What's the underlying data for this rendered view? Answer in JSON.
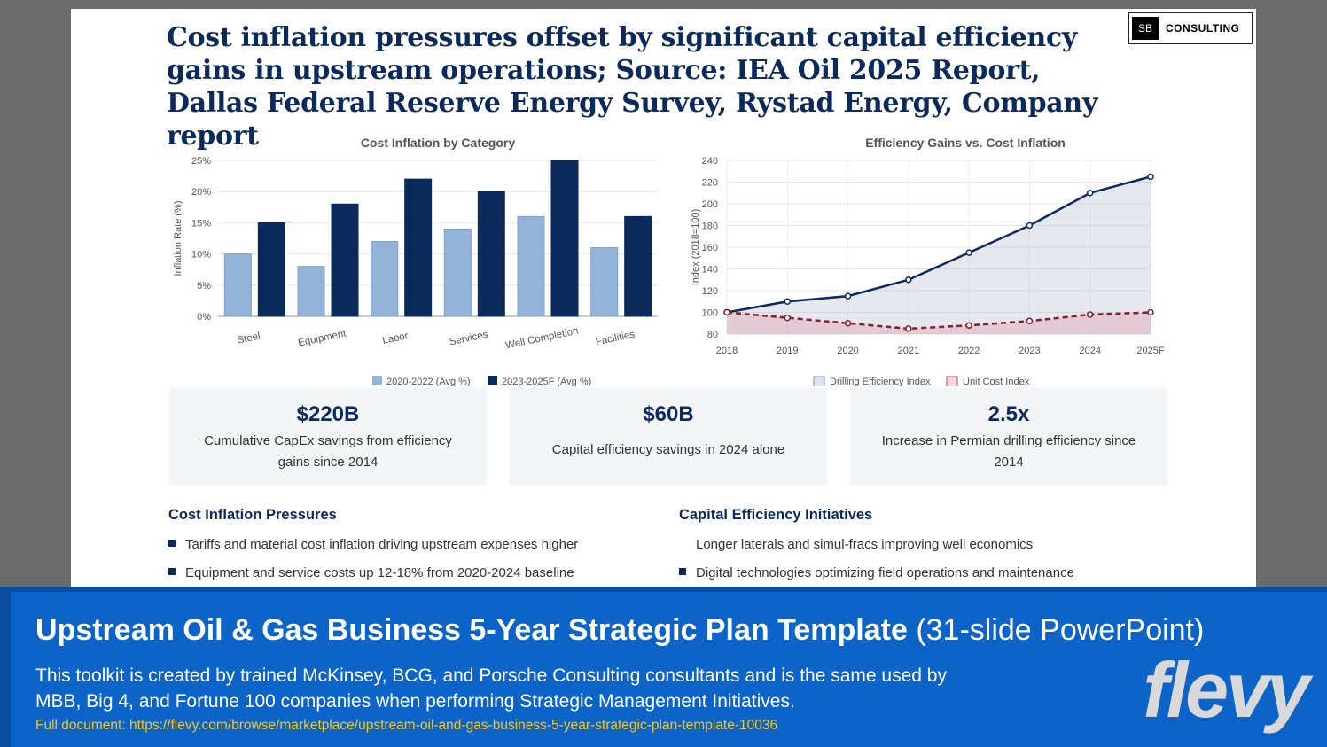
{
  "slide": {
    "title": "Cost inflation pressures offset by significant capital efficiency gains in upstream operations; Source: IEA Oil 2025 Report, Dallas Federal Reserve Energy Survey, Rystad Energy, Company report",
    "logo": {
      "box": "SB",
      "text": "CONSULTING"
    }
  },
  "chart_data": [
    {
      "type": "bar",
      "title": "Cost Inflation by Category",
      "ylabel": "Inflation Rate (%)",
      "xlabel": "",
      "categories": [
        "Steel",
        "Equipment",
        "Labor",
        "Services",
        "Well Completion",
        "Facilities"
      ],
      "series": [
        {
          "name": "2020-2022 (Avg %)",
          "values": [
            10,
            8,
            12,
            14,
            16,
            11
          ],
          "color": "#93b3d8"
        },
        {
          "name": "2023-2025F (Avg %)",
          "values": [
            15,
            18,
            22,
            20,
            25,
            16
          ],
          "color": "#0b2a5c"
        }
      ],
      "ylim": [
        0,
        25
      ],
      "yticks": [
        "0%",
        "5%",
        "10%",
        "15%",
        "20%",
        "25%"
      ],
      "legend": "bottom"
    },
    {
      "type": "line",
      "title": "Efficiency Gains vs. Cost Inflation",
      "ylabel": "Index (2018=100)",
      "xlabel": "",
      "x": [
        "2018",
        "2019",
        "2020",
        "2021",
        "2022",
        "2023",
        "2024",
        "2025F"
      ],
      "series": [
        {
          "name": "Drilling Efficiency Index",
          "values": [
            100,
            110,
            115,
            130,
            155,
            180,
            210,
            225
          ],
          "color": "#0b2a5c"
        },
        {
          "name": "Unit Cost Index",
          "values": [
            100,
            95,
            90,
            85,
            88,
            92,
            98,
            100
          ],
          "color": "#8b1a2b"
        }
      ],
      "ylim": [
        80,
        240
      ],
      "yticks": [
        "80",
        "100",
        "120",
        "140",
        "160",
        "180",
        "200",
        "220",
        "240"
      ],
      "legend": "bottom"
    }
  ],
  "stats": [
    {
      "value": "$220B",
      "desc": "Cumulative CapEx savings from efficiency gains since 2014"
    },
    {
      "value": "$60B",
      "desc": "Capital efficiency savings in 2024 alone"
    },
    {
      "value": "2.5x",
      "desc": "Increase in Permian drilling efficiency since 2014"
    }
  ],
  "sections": {
    "left": {
      "heading": "Cost Inflation Pressures",
      "bullets": [
        "Tariffs and material cost inflation driving upstream expenses higher",
        "Equipment and service costs up 12-18% from 2020-2024 baseline"
      ]
    },
    "right": {
      "heading": "Capital Efficiency Initiatives",
      "bullets": [
        "Longer laterals and simul-fracs improving well economics",
        "Digital technologies optimizing field operations and maintenance"
      ]
    }
  },
  "banner": {
    "title": "Upstream Oil & Gas Business 5-Year Strategic Plan Template",
    "subtitle": "(31-slide PowerPoint)",
    "desc": "This toolkit is created by trained McKinsey, BCG, and Porsche Consulting consultants and is the same used by MBB, Big 4, and Fortune 100 companies when performing Strategic Management Initiatives.",
    "link": "Full document: https://flevy.com/browse/marketplace/upstream-oil-and-gas-business-5-year-strategic-plan-template-10036",
    "brand": "flevy"
  }
}
